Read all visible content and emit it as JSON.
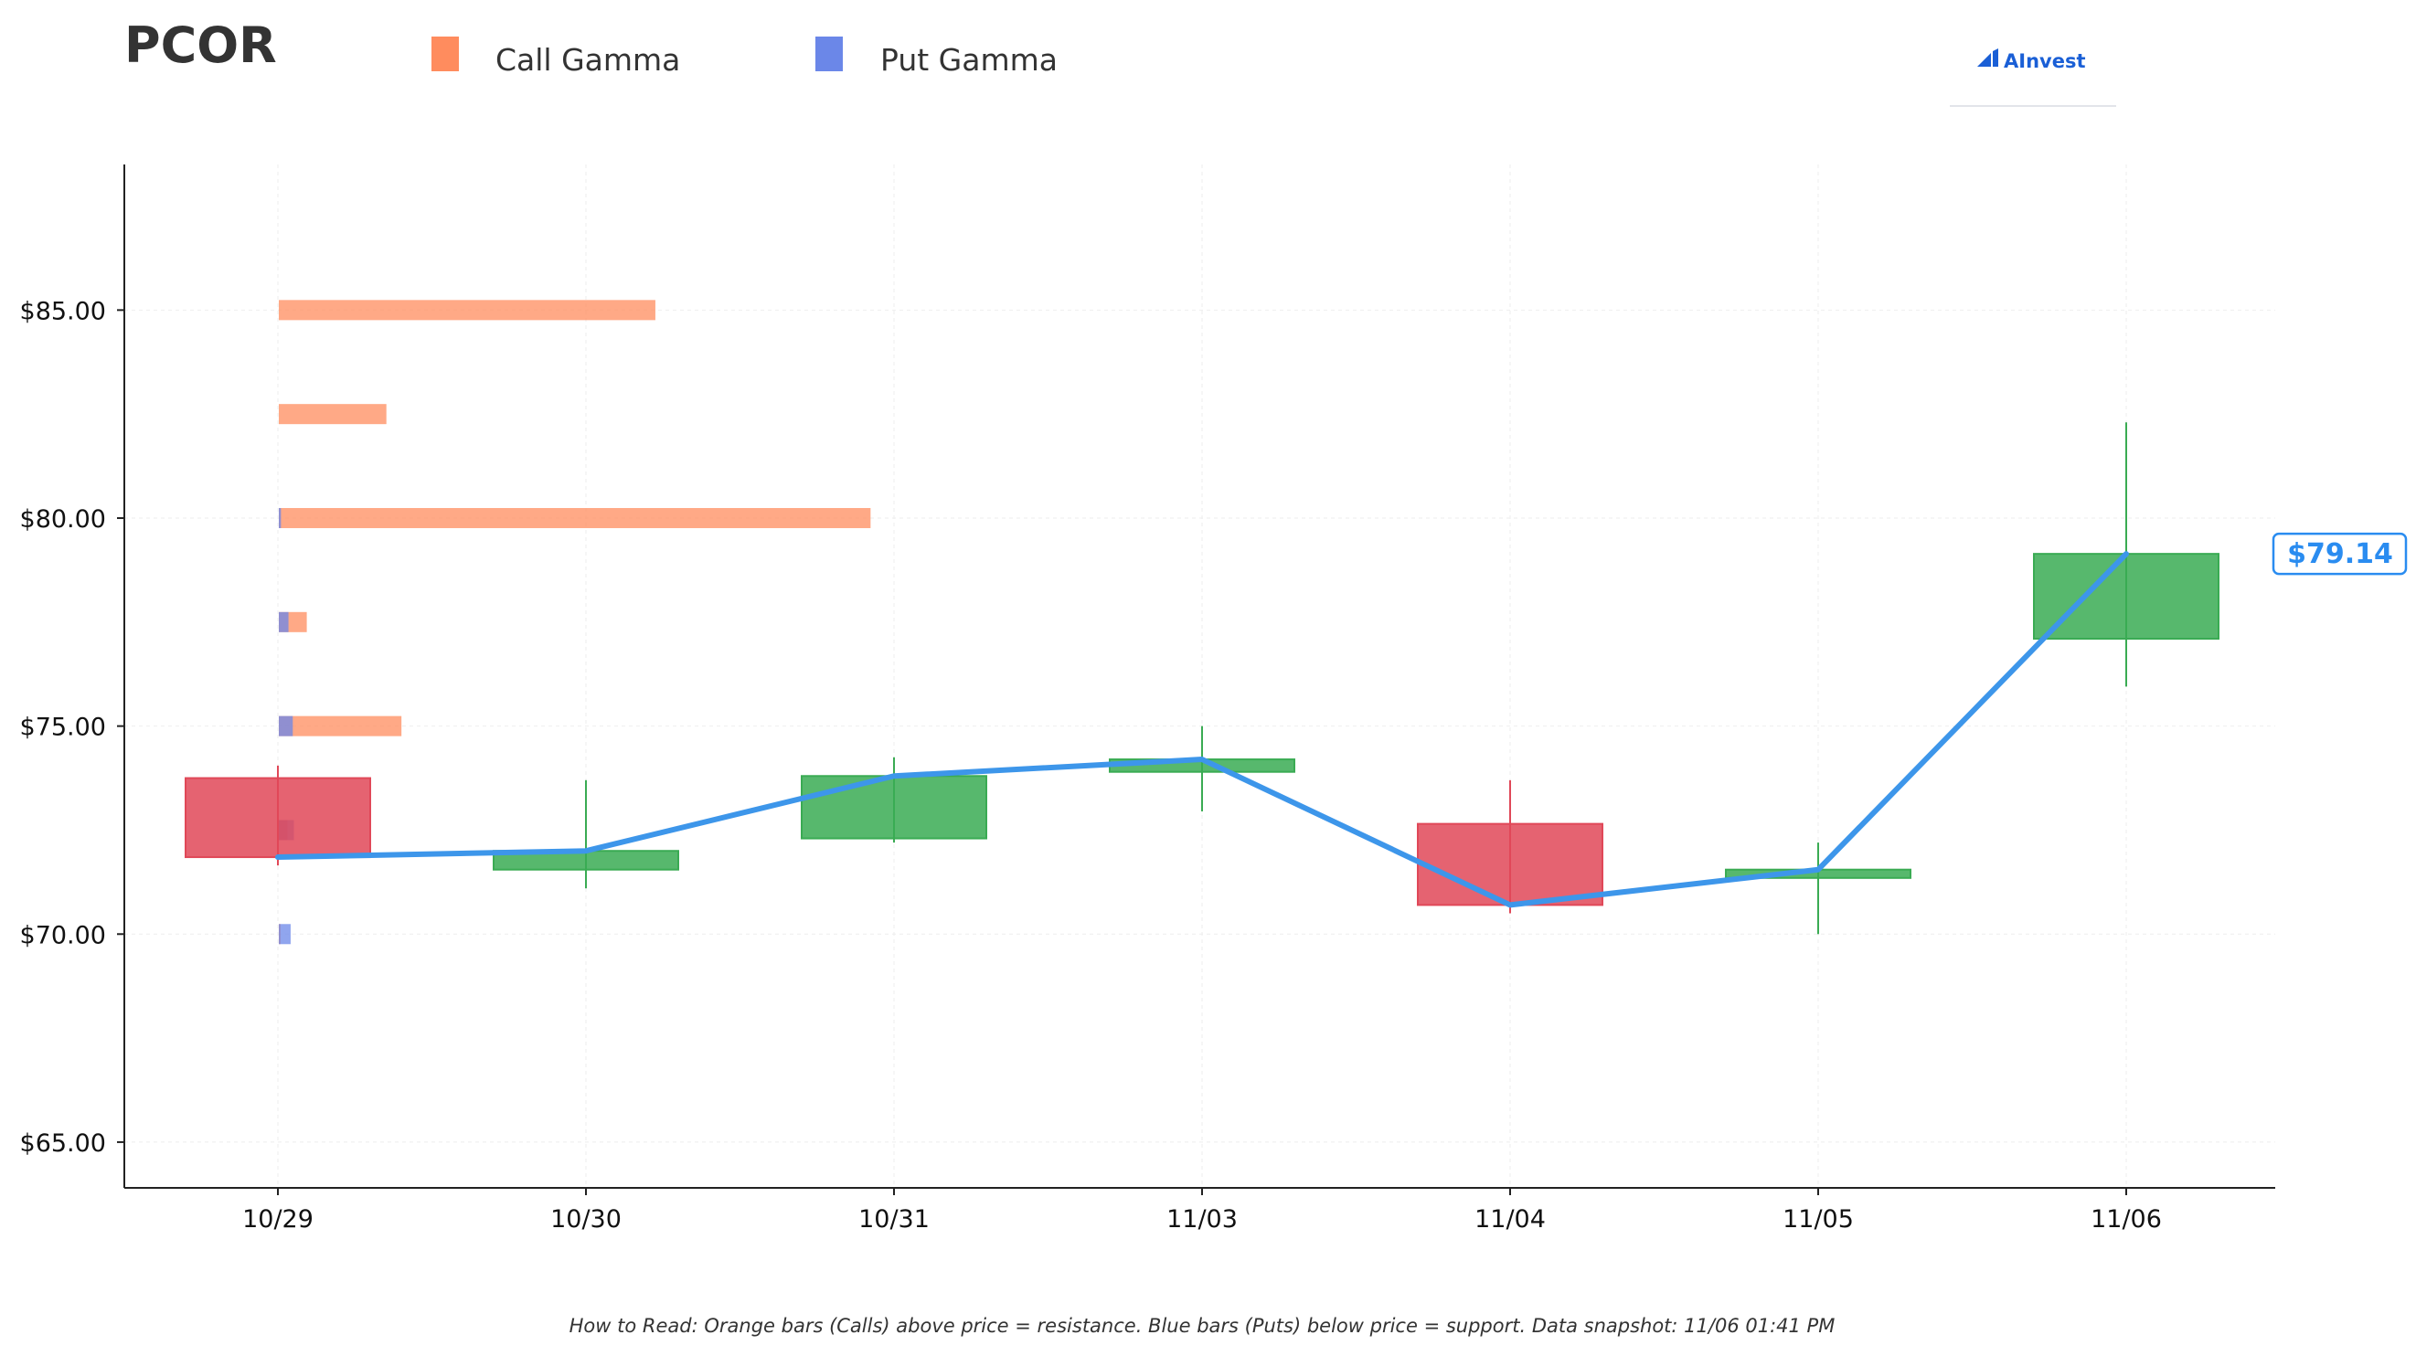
{
  "chart_data": {
    "type": "candlestick",
    "title": "PCOR",
    "legend": {
      "placement": "top",
      "items": [
        {
          "label": "Call Gamma",
          "color": "#ff8c5e"
        },
        {
          "label": "Put Gamma",
          "color": "#6b87e8"
        }
      ]
    },
    "brand": "AInvest",
    "categories": [
      "10/29",
      "10/30",
      "10/31",
      "11/03",
      "11/04",
      "11/05",
      "11/06"
    ],
    "ohlc": [
      {
        "open": 73.75,
        "high": 74.05,
        "low": 71.65,
        "close": 71.85
      },
      {
        "open": 71.55,
        "high": 73.7,
        "low": 71.1,
        "close": 72.0
      },
      {
        "open": 72.3,
        "high": 74.25,
        "low": 72.2,
        "close": 73.8
      },
      {
        "open": 73.9,
        "high": 75.0,
        "low": 72.95,
        "close": 74.2
      },
      {
        "open": 72.65,
        "high": 73.7,
        "low": 70.5,
        "close": 70.7
      },
      {
        "open": 71.35,
        "high": 72.2,
        "low": 70.0,
        "close": 71.55
      },
      {
        "open": 77.1,
        "high": 82.3,
        "low": 75.95,
        "close": 79.14
      }
    ],
    "price_line": {
      "color": "#3d96ea",
      "values": [
        71.85,
        72.0,
        73.8,
        74.2,
        70.7,
        71.55,
        79.14
      ]
    },
    "last_price_label": "$79.14",
    "gamma_levels": [
      {
        "strike": 85.0,
        "call": 0.35,
        "put": 0.0
      },
      {
        "strike": 82.5,
        "call": 0.1,
        "put": 0.0
      },
      {
        "strike": 80.0,
        "call": 0.55,
        "put": 0.002
      },
      {
        "strike": 77.5,
        "call": 0.026,
        "put": 0.009
      },
      {
        "strike": 75.0,
        "call": 0.114,
        "put": 0.013
      },
      {
        "strike": 72.5,
        "call": 0.008,
        "put": 0.014
      },
      {
        "strike": 70.0,
        "call": 0.0015,
        "put": 0.011
      }
    ],
    "y_ticks": [
      "$65.00",
      "$70.00",
      "$75.00",
      "$80.00",
      "$85.00"
    ],
    "y_tick_values": [
      65,
      70,
      75,
      80,
      85
    ],
    "ylim": [
      63.9,
      88.5
    ],
    "grid": true,
    "colors": {
      "up": "#3aab53",
      "down": "#e04858",
      "call": "#ff8c5e",
      "put": "#6b87e8"
    },
    "footnote": "How to Read: Orange bars (Calls) above price = resistance. Blue bars (Puts) below price = support. Data snapshot: 11/06 01:41 PM"
  }
}
